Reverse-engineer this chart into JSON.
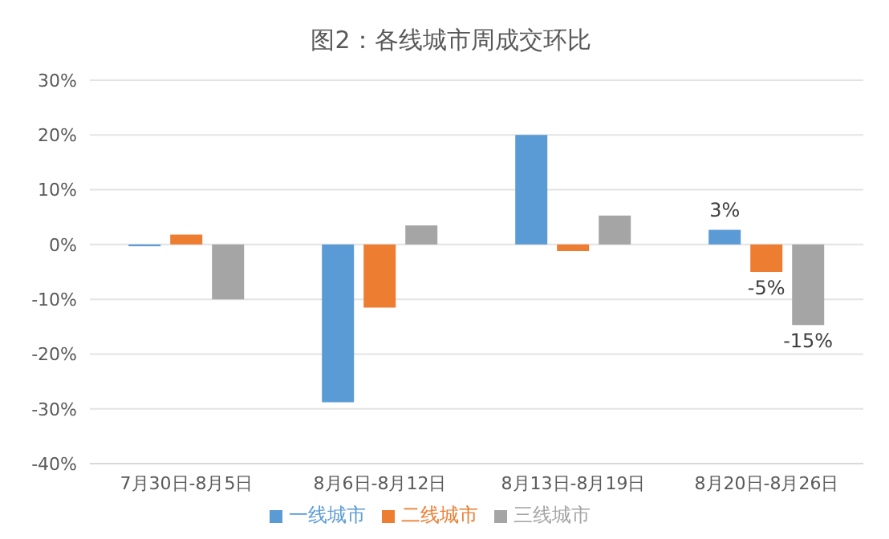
{
  "chart_data": {
    "type": "bar",
    "title": "图2：各线城市周成交环比",
    "categories": [
      "7月30日-8月5日",
      "8月6日-8月12日",
      "8月13日-8月19日",
      "8月20日-8月26日"
    ],
    "series": [
      {
        "name": "一线城市",
        "color": "#5b9bd5",
        "values": [
          -0.3,
          -28.8,
          20,
          2.7
        ],
        "value_labels": [
          null,
          null,
          null,
          "3%"
        ]
      },
      {
        "name": "二线城市",
        "color": "#ed7d31",
        "values": [
          1.8,
          -11.5,
          -1.2,
          -5
        ],
        "value_labels": [
          null,
          null,
          null,
          "-5%"
        ]
      },
      {
        "name": "三线城市",
        "color": "#a5a5a5",
        "values": [
          -10,
          3.5,
          5.3,
          -14.7
        ],
        "value_labels": [
          null,
          null,
          null,
          "-15%"
        ]
      }
    ],
    "ylim": [
      -40,
      30
    ],
    "yticks": [
      {
        "value": -40,
        "label": "-40%"
      },
      {
        "value": -30,
        "label": "-30%"
      },
      {
        "value": -20,
        "label": "-20%"
      },
      {
        "value": -10,
        "label": "-10%"
      },
      {
        "value": 0,
        "label": "0%"
      },
      {
        "value": 10,
        "label": "10%"
      },
      {
        "value": 20,
        "label": "20%"
      },
      {
        "value": 30,
        "label": "30%"
      }
    ],
    "grid": "y",
    "legend": "bottom"
  }
}
